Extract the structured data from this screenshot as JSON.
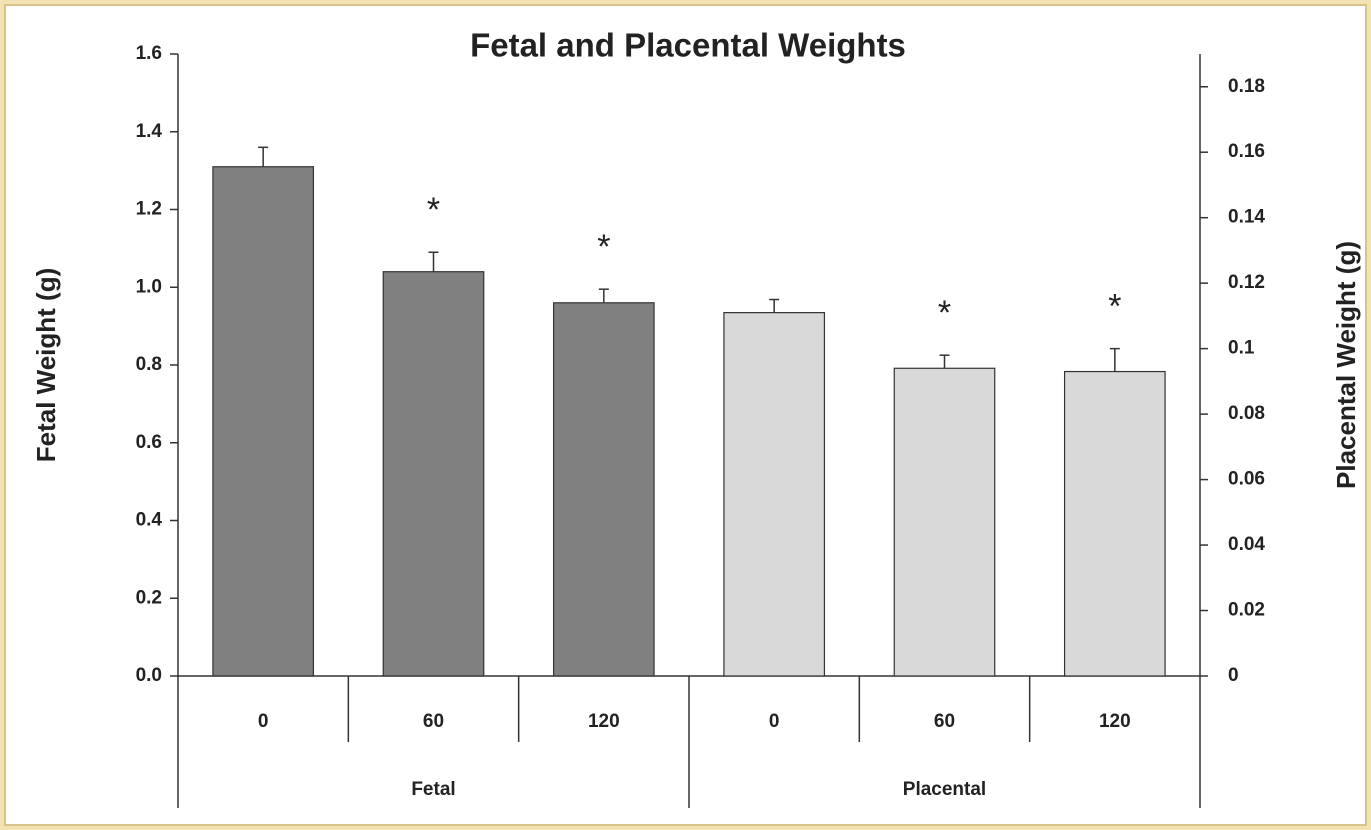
{
  "chart_data": {
    "type": "bar",
    "title": "Fetal and Placental Weights",
    "ylabel": "Fetal Weight (g)",
    "y2label": "Placental Weight (g)",
    "categories": [
      "0",
      "60",
      "120"
    ],
    "series": [
      {
        "name": "Fetal",
        "color": "#808080",
        "axis": "y",
        "values": [
          1.31,
          1.04,
          0.96
        ],
        "errors": [
          0.05,
          0.05,
          0.035
        ]
      },
      {
        "name": "Placental",
        "color": "#d9d9d9",
        "axis": "y2",
        "values": [
          0.111,
          0.094,
          0.093
        ],
        "errors": [
          0.004,
          0.004,
          0.007
        ]
      }
    ],
    "annotations": [
      {
        "text": "*",
        "series": 0,
        "index": 1
      },
      {
        "text": "*",
        "series": 0,
        "index": 2
      },
      {
        "text": "*",
        "series": 1,
        "index": 1
      },
      {
        "text": "*",
        "series": 1,
        "index": 2
      }
    ],
    "ylim": [
      0,
      1.6
    ],
    "yticks": [
      {
        "value": 0,
        "label": "0.0"
      },
      0.2,
      0.4,
      0.6,
      0.8,
      {
        "value": 1,
        "label": "1.0"
      },
      1.2,
      1.4,
      1.6
    ],
    "y2lim": [
      0,
      0.19
    ],
    "y2ticks": [
      0,
      0.02,
      0.04,
      0.06,
      0.08,
      0.1,
      0.12,
      0.14,
      0.16,
      0.18
    ]
  }
}
